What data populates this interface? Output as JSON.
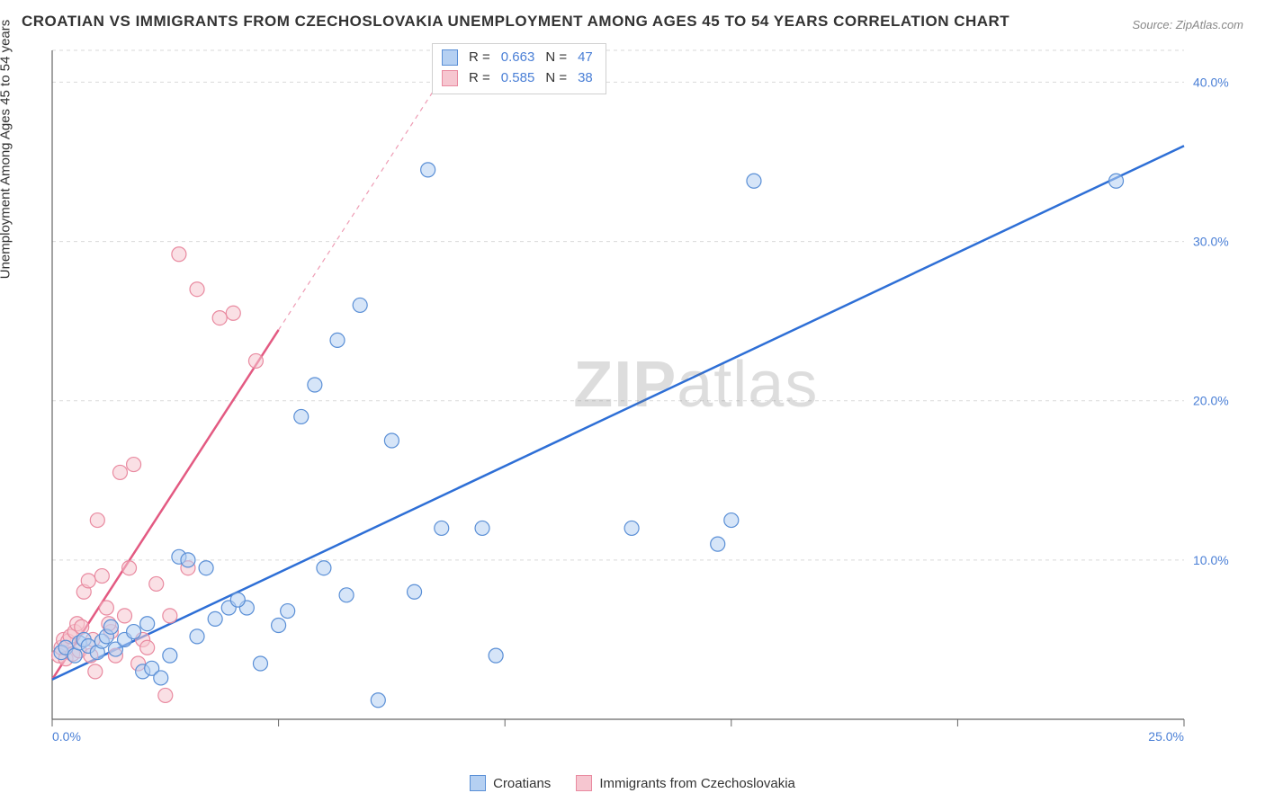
{
  "title": "CROATIAN VS IMMIGRANTS FROM CZECHOSLOVAKIA UNEMPLOYMENT AMONG AGES 45 TO 54 YEARS CORRELATION CHART",
  "source": "Source: ZipAtlas.com",
  "y_axis_label": "Unemployment Among Ages 45 to 54 years",
  "watermark_a": "ZIP",
  "watermark_b": "atlas",
  "chart": {
    "type": "scatter-with-regression",
    "background_color": "#ffffff",
    "grid_color": "#d9d9d9",
    "axis_color": "#666666",
    "tick_label_color": "#4a7fd6",
    "xlim": [
      0,
      25
    ],
    "ylim": [
      0,
      42
    ],
    "x_ticks": [
      0,
      5,
      10,
      15,
      20,
      25
    ],
    "x_tick_labels": [
      "0.0%",
      "",
      "",
      "",
      "",
      "25.0%"
    ],
    "y_ticks": [
      10,
      20,
      30,
      40
    ],
    "y_tick_labels": [
      "10.0%",
      "20.0%",
      "30.0%",
      "40.0%"
    ],
    "marker_radius": 8,
    "marker_opacity": 0.55,
    "line_width": 2.5
  },
  "series": [
    {
      "name": "Croatians",
      "color_fill": "#b5d0f2",
      "color_stroke": "#5a8fd6",
      "color_line": "#2e6fd6",
      "R": "0.663",
      "N": "47",
      "line": {
        "x1": 0,
        "y1": 2.5,
        "x2": 25,
        "y2": 36.0,
        "dashed_after_x": null
      },
      "points": [
        [
          0.2,
          4.2
        ],
        [
          0.3,
          4.5
        ],
        [
          0.5,
          4.0
        ],
        [
          0.6,
          4.8
        ],
        [
          0.7,
          5.0
        ],
        [
          0.8,
          4.6
        ],
        [
          1.0,
          4.2
        ],
        [
          1.1,
          4.9
        ],
        [
          1.2,
          5.2
        ],
        [
          1.4,
          4.4
        ],
        [
          1.6,
          5.0
        ],
        [
          1.8,
          5.5
        ],
        [
          2.0,
          3.0
        ],
        [
          2.2,
          3.2
        ],
        [
          2.4,
          2.6
        ],
        [
          2.6,
          4.0
        ],
        [
          2.8,
          10.2
        ],
        [
          3.0,
          10.0
        ],
        [
          3.2,
          5.2
        ],
        [
          3.4,
          9.5
        ],
        [
          3.6,
          6.3
        ],
        [
          3.9,
          7.0
        ],
        [
          4.3,
          7.0
        ],
        [
          4.6,
          3.5
        ],
        [
          5.0,
          5.9
        ],
        [
          5.2,
          6.8
        ],
        [
          5.5,
          19.0
        ],
        [
          5.8,
          21.0
        ],
        [
          6.0,
          9.5
        ],
        [
          6.3,
          23.8
        ],
        [
          6.5,
          7.8
        ],
        [
          6.8,
          26.0
        ],
        [
          7.2,
          1.2
        ],
        [
          7.5,
          17.5
        ],
        [
          8.0,
          8.0
        ],
        [
          8.3,
          34.5
        ],
        [
          8.6,
          12.0
        ],
        [
          9.5,
          12.0
        ],
        [
          9.8,
          4.0
        ],
        [
          12.8,
          12.0
        ],
        [
          14.7,
          11.0
        ],
        [
          15.5,
          33.8
        ],
        [
          15.0,
          12.5
        ],
        [
          23.5,
          33.8
        ],
        [
          4.1,
          7.5
        ],
        [
          2.1,
          6.0
        ],
        [
          1.3,
          5.8
        ]
      ]
    },
    {
      "name": "Immigrants from Czechoslovakia",
      "color_fill": "#f6c6d0",
      "color_stroke": "#e98aa0",
      "color_line": "#e35a82",
      "R": "0.585",
      "N": "38",
      "line": {
        "x1": 0,
        "y1": 2.5,
        "x2": 9.0,
        "y2": 42.0,
        "dashed_after_x": 5.0
      },
      "points": [
        [
          0.15,
          4.0
        ],
        [
          0.2,
          4.5
        ],
        [
          0.25,
          5.0
        ],
        [
          0.3,
          3.8
        ],
        [
          0.35,
          4.9
        ],
        [
          0.4,
          5.2
        ],
        [
          0.45,
          4.1
        ],
        [
          0.5,
          5.5
        ],
        [
          0.55,
          6.0
        ],
        [
          0.6,
          4.3
        ],
        [
          0.65,
          5.8
        ],
        [
          0.7,
          8.0
        ],
        [
          0.8,
          8.7
        ],
        [
          0.85,
          4.0
        ],
        [
          0.9,
          5.0
        ],
        [
          0.95,
          3.0
        ],
        [
          1.0,
          12.5
        ],
        [
          1.1,
          9.0
        ],
        [
          1.2,
          7.0
        ],
        [
          1.3,
          5.5
        ],
        [
          1.4,
          4.0
        ],
        [
          1.5,
          15.5
        ],
        [
          1.6,
          6.5
        ],
        [
          1.7,
          9.5
        ],
        [
          1.8,
          16.0
        ],
        [
          1.9,
          3.5
        ],
        [
          2.0,
          5.0
        ],
        [
          2.1,
          4.5
        ],
        [
          2.3,
          8.5
        ],
        [
          2.5,
          1.5
        ],
        [
          2.8,
          29.2
        ],
        [
          3.0,
          9.5
        ],
        [
          3.2,
          27.0
        ],
        [
          3.7,
          25.2
        ],
        [
          4.0,
          25.5
        ],
        [
          4.5,
          22.5
        ],
        [
          2.6,
          6.5
        ],
        [
          1.25,
          6.0
        ]
      ]
    }
  ],
  "top_legend": {
    "rows": [
      {
        "sw_fill": "#b5d0f2",
        "sw_stroke": "#5a8fd6",
        "r_label": "R =",
        "r_val": "0.663",
        "n_label": "N =",
        "n_val": "47"
      },
      {
        "sw_fill": "#f6c6d0",
        "sw_stroke": "#e98aa0",
        "r_label": "R =",
        "r_val": "0.585",
        "n_label": "N =",
        "n_val": "38"
      }
    ]
  },
  "bottom_legend": {
    "items": [
      {
        "sw_fill": "#b5d0f2",
        "sw_stroke": "#5a8fd6",
        "label": "Croatians"
      },
      {
        "sw_fill": "#f6c6d0",
        "sw_stroke": "#e98aa0",
        "label": "Immigrants from Czechoslovakia"
      }
    ]
  }
}
